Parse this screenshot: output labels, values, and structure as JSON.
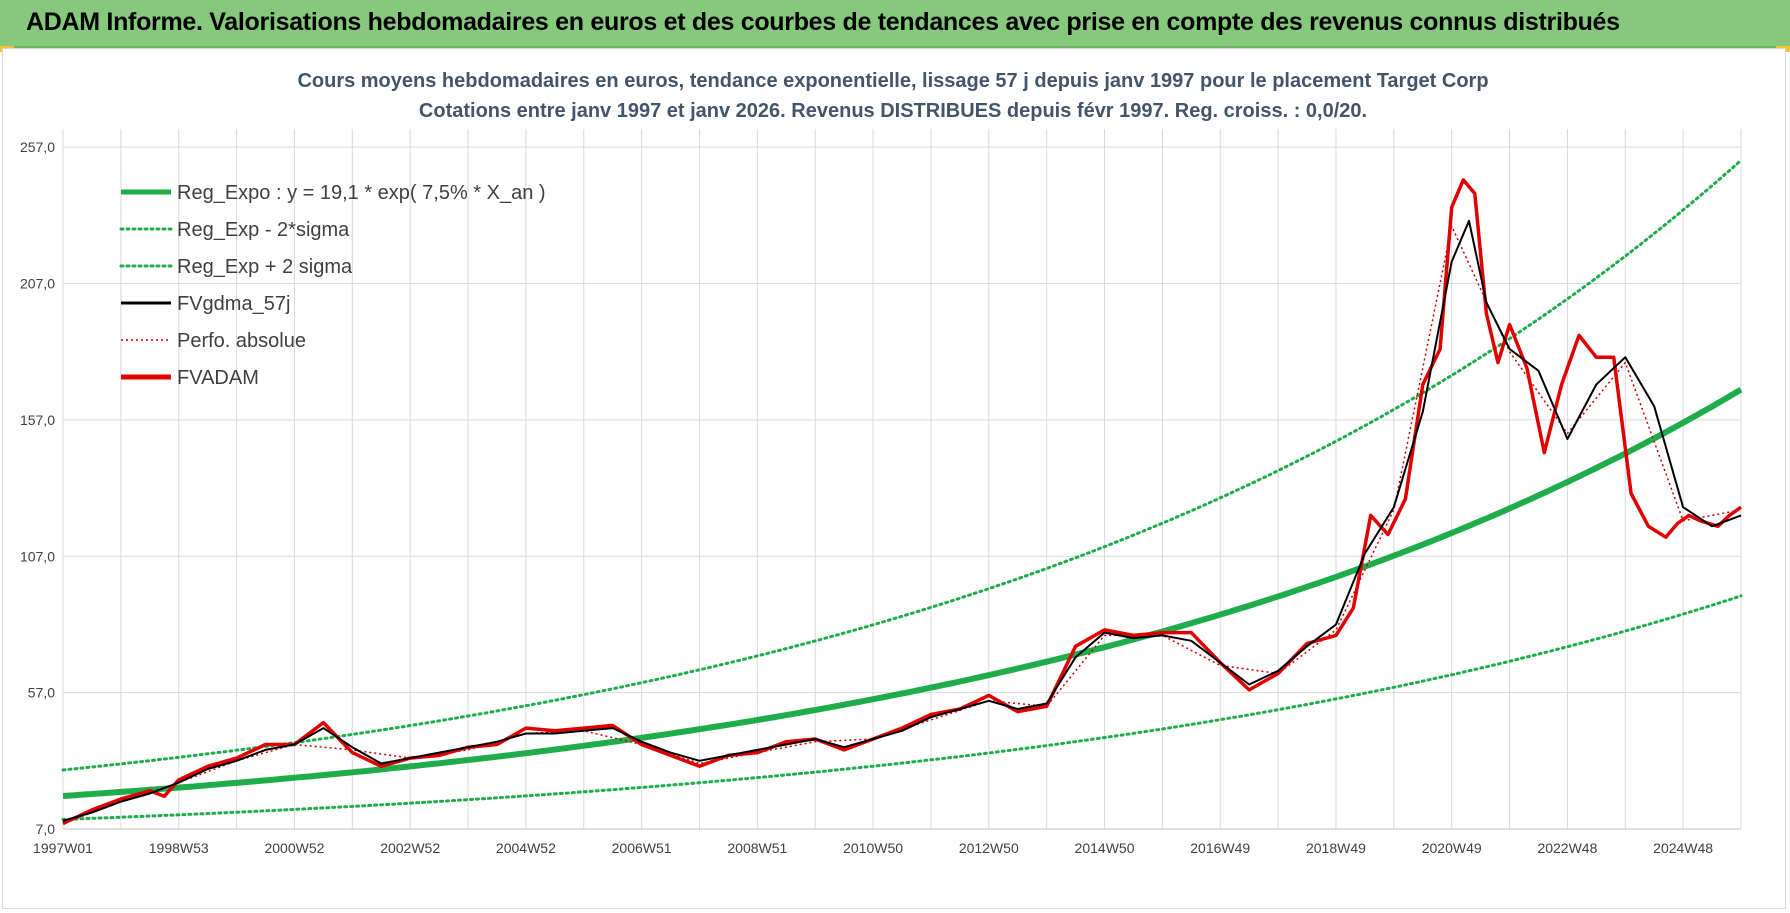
{
  "header": {
    "title": "ADAM Informe. Valorisations hebdomadaires en euros et des courbes de tendances avec prise en compte des revenus connus distribués"
  },
  "colors": {
    "header_bg": "#86c97c",
    "regression": "#1fad4b",
    "band": "#1fad4b",
    "smoothed": "#000000",
    "perfo": "#cc0000",
    "price": "#e00000",
    "corner_accent": "#f2c230"
  },
  "chart_data": {
    "type": "line",
    "title": "Cours moyens hebdomadaires en euros, tendance exponentielle, lissage 57 j depuis janv 1997 pour le placement Target Corp",
    "subtitle": "Cotations entre janv 1997 et janv 2026. Revenus DISTRIBUES depuis févr 1997. Reg. croiss. : 0,0/20.",
    "xlabel": "",
    "ylabel": "",
    "xlim": [
      1997.0,
      2026.0
    ],
    "ylim": [
      7,
      282
    ],
    "y_ticks": [
      "7,0",
      "57,0",
      "107,0",
      "157,0",
      "207,0",
      "257,0"
    ],
    "y_tick_values": [
      7,
      57,
      107,
      157,
      207,
      257
    ],
    "x_ticks": [
      "1997W01",
      "1998W53",
      "2000W52",
      "2002W52",
      "2004W52",
      "2006W51",
      "2008W51",
      "2010W50",
      "2012W50",
      "2014W50",
      "2016W49",
      "2018W49",
      "2020W49",
      "2022W48",
      "2024W48"
    ],
    "x_tick_values": [
      1997.0,
      1999.0,
      2001.0,
      2003.0,
      2005.0,
      2007.0,
      2009.0,
      2011.0,
      2013.0,
      2015.0,
      2017.0,
      2019.0,
      2021.0,
      2023.0,
      2025.0
    ],
    "grid": true,
    "legend_position": "top-left",
    "legend": [
      {
        "label": "Reg_Expo : y = 19,1 * exp( 7,5% *  X_an )",
        "style": "solid-thick",
        "color": "#1fad4b"
      },
      {
        "label": "Reg_Exp - 2*sigma",
        "style": "dotted",
        "color": "#1fad4b"
      },
      {
        "label": "Reg_Exp + 2 sigma",
        "style": "dotted",
        "color": "#1fad4b"
      },
      {
        "label": "FVgdma_57j",
        "style": "solid",
        "color": "#000000"
      },
      {
        "label": "Perfo. absolue",
        "style": "dotted-thin",
        "color": "#cc0000"
      },
      {
        "label": "FVADAM",
        "style": "solid-thick",
        "color": "#e00000"
      }
    ],
    "regression": {
      "a": 19.1,
      "rate": 0.075,
      "upper_factor": 1.5,
      "lower_factor": 0.55
    },
    "series": [
      {
        "name": "FVADAM",
        "x": [
          1997.0,
          1997.5,
          1998.0,
          1998.5,
          1998.75,
          1999.0,
          1999.5,
          2000.0,
          2000.5,
          2001.0,
          2001.5,
          2002.0,
          2002.5,
          2003.0,
          2003.5,
          2004.0,
          2004.5,
          2005.0,
          2005.5,
          2006.0,
          2006.5,
          2007.0,
          2007.5,
          2008.0,
          2008.5,
          2009.0,
          2009.5,
          2010.0,
          2010.5,
          2011.0,
          2011.5,
          2012.0,
          2012.5,
          2013.0,
          2013.5,
          2014.0,
          2014.5,
          2015.0,
          2015.5,
          2016.0,
          2016.5,
          2017.0,
          2017.5,
          2018.0,
          2018.5,
          2019.0,
          2019.3,
          2019.6,
          2019.9,
          2020.2,
          2020.5,
          2020.8,
          2021.0,
          2021.2,
          2021.4,
          2021.6,
          2021.8,
          2022.0,
          2022.3,
          2022.6,
          2022.9,
          2023.2,
          2023.5,
          2023.8,
          2024.1,
          2024.4,
          2024.7,
          2024.9,
          2025.1,
          2025.3,
          2025.6,
          2025.8,
          2026.0
        ],
        "y": [
          9,
          14,
          18,
          21,
          19,
          25,
          30,
          33,
          38,
          38,
          46,
          35,
          30,
          33,
          34,
          37,
          38,
          44,
          43,
          44,
          45,
          38,
          34,
          30,
          34,
          35,
          39,
          40,
          36,
          40,
          44,
          49,
          51,
          56,
          50,
          52,
          74,
          80,
          78,
          79,
          79,
          68,
          58,
          64,
          75,
          78,
          88,
          122,
          115,
          128,
          170,
          183,
          235,
          245,
          240,
          196,
          178,
          192,
          176,
          145,
          170,
          188,
          180,
          180,
          130,
          118,
          114,
          119,
          122,
          120,
          118,
          122,
          125
        ]
      },
      {
        "name": "FVgdma_57j",
        "x": [
          1997.0,
          1997.5,
          1998.0,
          1998.5,
          1999.0,
          1999.5,
          2000.0,
          2000.5,
          2001.0,
          2001.5,
          2002.0,
          2002.5,
          2003.0,
          2003.5,
          2004.0,
          2004.5,
          2005.0,
          2005.5,
          2006.0,
          2006.5,
          2007.0,
          2007.5,
          2008.0,
          2008.5,
          2009.0,
          2009.5,
          2010.0,
          2010.5,
          2011.0,
          2011.5,
          2012.0,
          2012.5,
          2013.0,
          2013.5,
          2014.0,
          2014.5,
          2015.0,
          2015.5,
          2016.0,
          2016.5,
          2017.0,
          2017.5,
          2018.0,
          2018.5,
          2019.0,
          2019.5,
          2020.0,
          2020.5,
          2021.0,
          2021.3,
          2021.6,
          2022.0,
          2022.5,
          2023.0,
          2023.5,
          2024.0,
          2024.5,
          2025.0,
          2025.5,
          2026.0
        ],
        "y": [
          10,
          13,
          17,
          20,
          24,
          29,
          32,
          36,
          38,
          44,
          37,
          31,
          33,
          35,
          37,
          39,
          42,
          42,
          43,
          44,
          39,
          35,
          32,
          34,
          36,
          38,
          40,
          37,
          40,
          43,
          48,
          51,
          54,
          51,
          53,
          70,
          79,
          77,
          78,
          76,
          68,
          60,
          65,
          74,
          82,
          108,
          125,
          160,
          215,
          230,
          200,
          183,
          175,
          150,
          170,
          180,
          162,
          125,
          118,
          122
        ]
      },
      {
        "name": "Perfo. absolue",
        "x": [
          1997.0,
          1998.0,
          1999.0,
          2000.0,
          2001.0,
          2002.0,
          2003.0,
          2004.0,
          2005.0,
          2006.0,
          2007.0,
          2008.0,
          2009.0,
          2010.0,
          2011.0,
          2012.0,
          2013.0,
          2014.0,
          2015.0,
          2016.0,
          2017.0,
          2018.0,
          2019.0,
          2020.0,
          2021.0,
          2022.0,
          2023.0,
          2024.0,
          2025.0,
          2026.0
        ],
        "y": [
          9,
          17,
          24,
          32,
          38,
          36,
          33,
          36,
          42,
          43,
          38,
          31,
          35,
          39,
          40,
          47,
          54,
          52,
          78,
          78,
          67,
          64,
          80,
          124,
          228,
          182,
          152,
          178,
          120,
          124
        ]
      }
    ]
  }
}
